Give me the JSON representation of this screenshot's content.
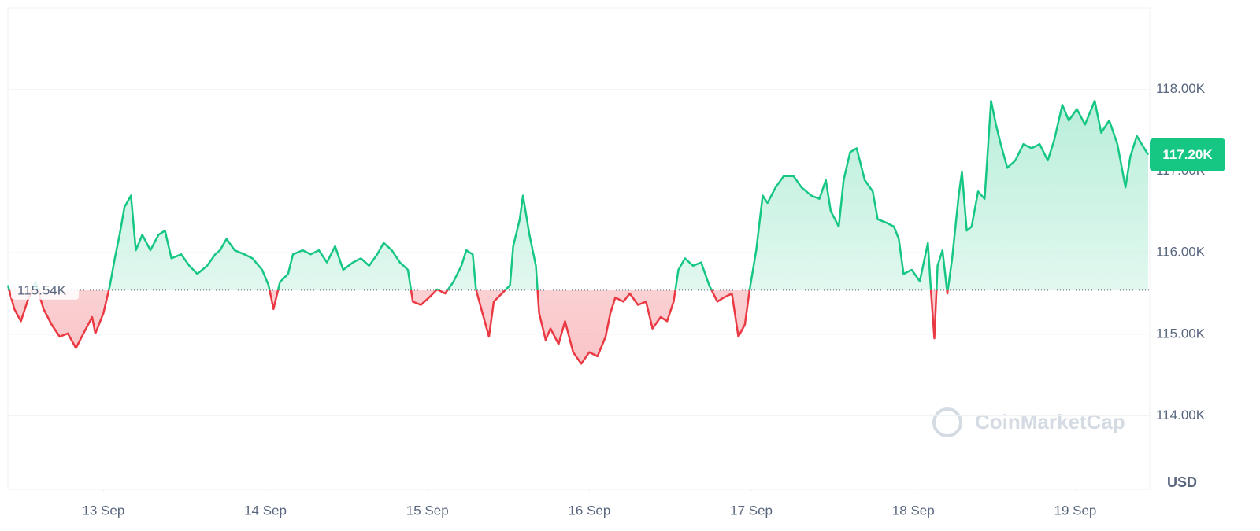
{
  "chart_data": {
    "type": "baseline-line",
    "x": [
      12.41,
      12.45,
      12.49,
      12.53,
      12.58,
      12.63,
      12.68,
      12.73,
      12.78,
      12.83,
      12.89,
      12.93,
      12.95,
      13.0,
      13.04,
      13.07,
      13.1,
      13.13,
      13.17,
      13.2,
      13.24,
      13.29,
      13.34,
      13.38,
      13.42,
      13.48,
      13.53,
      13.58,
      13.64,
      13.69,
      13.72,
      13.76,
      13.81,
      13.87,
      13.92,
      13.98,
      14.02,
      14.05,
      14.09,
      14.14,
      14.17,
      14.23,
      14.28,
      14.33,
      14.38,
      14.43,
      14.48,
      14.54,
      14.59,
      14.64,
      14.69,
      14.73,
      14.78,
      14.83,
      14.88,
      14.91,
      14.96,
      15.01,
      15.06,
      15.11,
      15.16,
      15.21,
      15.24,
      15.28,
      15.3,
      15.34,
      15.38,
      15.41,
      15.46,
      15.51,
      15.53,
      15.57,
      15.59,
      15.63,
      15.67,
      15.69,
      15.73,
      15.76,
      15.81,
      15.85,
      15.9,
      15.95,
      16.0,
      16.05,
      16.1,
      16.13,
      16.16,
      16.21,
      16.25,
      16.3,
      16.35,
      16.39,
      16.44,
      16.48,
      16.52,
      16.55,
      16.59,
      16.64,
      16.69,
      16.74,
      16.79,
      16.83,
      16.88,
      16.92,
      16.96,
      16.99,
      17.03,
      17.07,
      17.1,
      17.15,
      17.2,
      17.26,
      17.31,
      17.37,
      17.42,
      17.46,
      17.49,
      17.54,
      17.57,
      17.61,
      17.65,
      17.7,
      17.75,
      17.78,
      17.83,
      17.88,
      17.91,
      17.94,
      17.99,
      18.04,
      18.09,
      18.11,
      18.13,
      18.15,
      18.18,
      18.21,
      18.24,
      18.28,
      18.3,
      18.33,
      18.36,
      18.4,
      18.44,
      18.48,
      18.51,
      18.54,
      18.58,
      18.63,
      18.68,
      18.73,
      18.78,
      18.83,
      18.87,
      18.92,
      18.96,
      19.01,
      19.06,
      19.12,
      19.16,
      19.21,
      19.26,
      19.31,
      19.34,
      19.38,
      19.41,
      19.45
    ],
    "values": [
      115600,
      115310,
      115160,
      115400,
      115640,
      115310,
      115120,
      114970,
      115010,
      114830,
      115060,
      115210,
      115010,
      115260,
      115600,
      115930,
      116220,
      116560,
      116700,
      116030,
      116220,
      116030,
      116220,
      116270,
      115930,
      115980,
      115840,
      115740,
      115840,
      115980,
      116030,
      116170,
      116030,
      115980,
      115930,
      115790,
      115600,
      115310,
      115640,
      115740,
      115980,
      116030,
      115980,
      116030,
      115880,
      116080,
      115790,
      115880,
      115930,
      115840,
      115980,
      116120,
      116030,
      115880,
      115790,
      115400,
      115360,
      115450,
      115550,
      115500,
      115640,
      115840,
      116030,
      115980,
      115550,
      115260,
      114970,
      115400,
      115500,
      115600,
      116080,
      116410,
      116700,
      116220,
      115840,
      115260,
      114930,
      115070,
      114880,
      115160,
      114780,
      114640,
      114780,
      114730,
      114970,
      115260,
      115450,
      115400,
      115500,
      115360,
      115400,
      115070,
      115210,
      115160,
      115400,
      115790,
      115930,
      115840,
      115880,
      115600,
      115400,
      115450,
      115500,
      114970,
      115120,
      115550,
      116030,
      116700,
      116610,
      116800,
      116940,
      116940,
      116800,
      116700,
      116660,
      116890,
      116510,
      116320,
      116890,
      117230,
      117280,
      116890,
      116750,
      116410,
      116370,
      116320,
      116170,
      115740,
      115790,
      115650,
      116120,
      115500,
      114950,
      115840,
      116030,
      115500,
      115930,
      116700,
      116990,
      116270,
      116320,
      116750,
      116660,
      117860,
      117570,
      117330,
      117040,
      117130,
      117330,
      117280,
      117330,
      117130,
      117380,
      117810,
      117620,
      117760,
      117570,
      117860,
      117470,
      117620,
      117330,
      116800,
      117180,
      117430,
      117330,
      117200
    ],
    "baseline": {
      "value": 115540,
      "label": "115.54K"
    },
    "current_price": {
      "value": 117200,
      "label": "117.20K"
    },
    "up_color": "#16c784",
    "down_color": "#ea3943",
    "xlim": [
      12.41,
      19.45
    ],
    "xticks": [
      {
        "value": 13,
        "label": "13 Sep"
      },
      {
        "value": 14,
        "label": "14 Sep"
      },
      {
        "value": 15,
        "label": "15 Sep"
      },
      {
        "value": 16,
        "label": "16 Sep"
      },
      {
        "value": 17,
        "label": "17 Sep"
      },
      {
        "value": 18,
        "label": "18 Sep"
      },
      {
        "value": 19,
        "label": "19 Sep"
      }
    ],
    "ylim": [
      113100,
      119000
    ],
    "yticks": [
      {
        "value": 114000,
        "label": "114.00K"
      },
      {
        "value": 115000,
        "label": "115.00K"
      },
      {
        "value": 116000,
        "label": "116.00K"
      },
      {
        "value": 117000,
        "label": "117.00K"
      },
      {
        "value": 118000,
        "label": "118.00K"
      }
    ],
    "y_unit": "USD",
    "watermark": "CoinMarketCap",
    "grid": true
  }
}
